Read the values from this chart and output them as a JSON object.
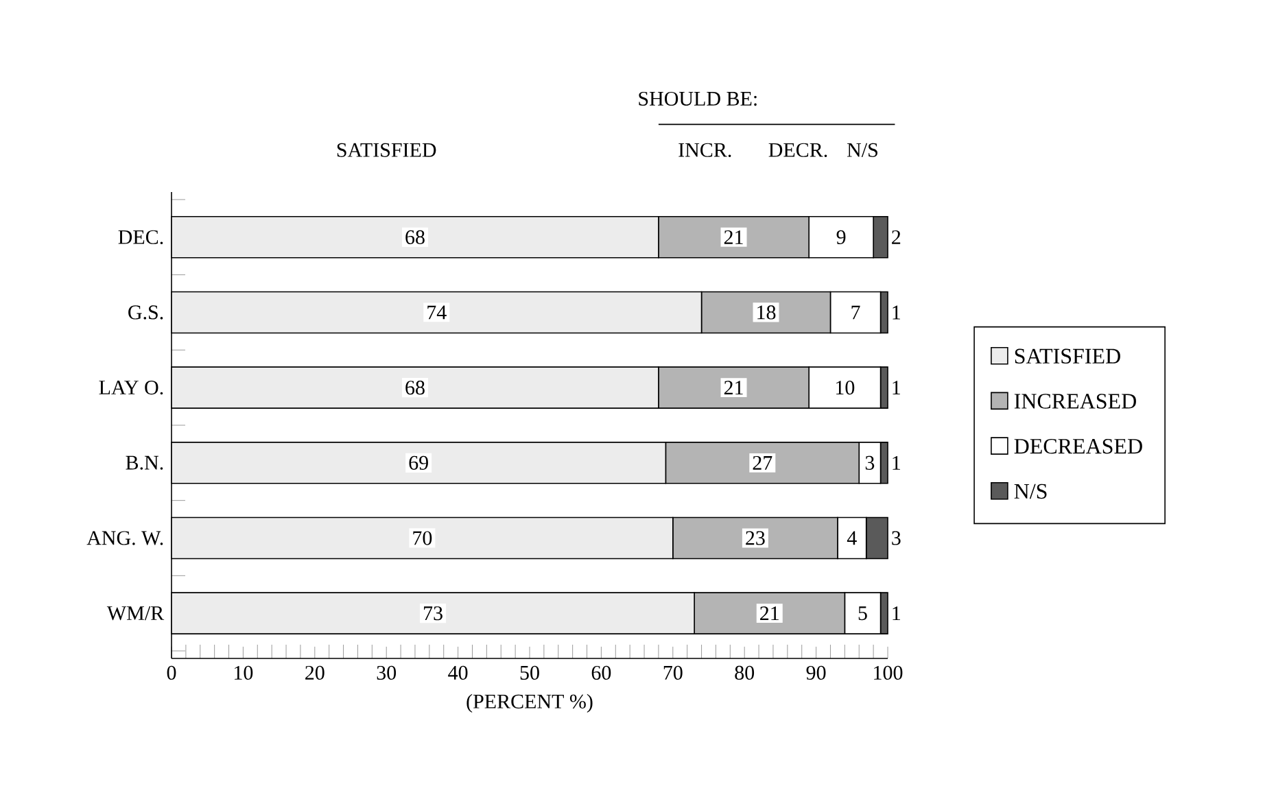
{
  "chart_data": {
    "type": "bar",
    "orientation": "horizontal",
    "stacked": true,
    "data_labels": true,
    "legend": "right",
    "xlabel": "(PERCENT %)",
    "categories": [
      "DEC.",
      "G.S.",
      "LAY O.",
      "B.N.",
      "ANG. W.",
      "WM/R"
    ],
    "series": [
      {
        "name": "SATISFIED",
        "color": "#ececec",
        "values": [
          68,
          74,
          68,
          69,
          70,
          73
        ]
      },
      {
        "name": "INCREASED",
        "color": "#b4b4b4",
        "values": [
          21,
          18,
          21,
          27,
          23,
          21
        ]
      },
      {
        "name": "DECREASED",
        "color": "#ffffff",
        "values": [
          9,
          7,
          10,
          3,
          4,
          5
        ]
      },
      {
        "name": "N/S",
        "color": "#5a5a5a",
        "values": [
          2,
          1,
          1,
          1,
          3,
          1
        ]
      }
    ],
    "xlim": [
      0,
      100
    ],
    "xticks": [
      0,
      10,
      20,
      30,
      40,
      50,
      60,
      70,
      80,
      90,
      100
    ],
    "annotations": [
      "SATISFIED",
      "SHOULD BE:",
      "INCR.",
      "DECR.",
      "N/S"
    ]
  }
}
